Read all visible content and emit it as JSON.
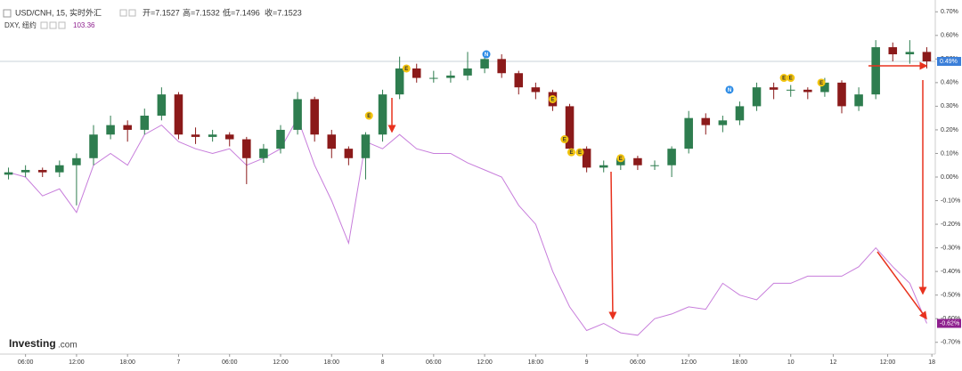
{
  "chart_data": {
    "type": "candlestick",
    "title": "USD/CNH, 15, 实时外汇",
    "header_stats": [
      "开=7.1527",
      "高=7.1532",
      "低=7.1496",
      "收=7.1523"
    ],
    "x": [
      0.5,
      1.5,
      2.5,
      3.5,
      4.5,
      5.5,
      6.5,
      7.5,
      8.5,
      9.5,
      10.5,
      11.5,
      12.5,
      13.5,
      14.5,
      15.5,
      16.5,
      17.5,
      18.5,
      19.5,
      20.5,
      21.5,
      22.5,
      23.5,
      24.5,
      25.5,
      26.5,
      27.5,
      28.5,
      29.5,
      30.5,
      31.5,
      32.5,
      33.5,
      34.5,
      35.5,
      36.5,
      37.5,
      38.5,
      39.5,
      40.5,
      41.5,
      42.5,
      43.5,
      44.5,
      45.5,
      46.5,
      47.5,
      48.5,
      49.5,
      50.5,
      51.5,
      52.5,
      53.5,
      54.5
    ],
    "open": [
      0.01,
      0.02,
      0.03,
      0.02,
      0.05,
      0.08,
      0.18,
      0.22,
      0.2,
      0.26,
      0.35,
      0.18,
      0.17,
      0.18,
      0.16,
      0.08,
      0.12,
      0.2,
      0.33,
      0.18,
      0.12,
      0.08,
      0.18,
      0.35,
      0.46,
      0.42,
      0.42,
      0.43,
      0.46,
      0.5,
      0.44,
      0.38,
      0.36,
      0.3,
      0.12,
      0.04,
      0.05,
      0.08,
      0.05,
      0.05,
      0.12,
      0.25,
      0.22,
      0.24,
      0.3,
      0.38,
      0.37,
      0.37,
      0.36,
      0.4,
      0.3,
      0.35,
      0.55,
      0.52,
      0.53
    ],
    "high": [
      0.04,
      0.05,
      0.04,
      0.07,
      0.1,
      0.22,
      0.26,
      0.24,
      0.29,
      0.38,
      0.36,
      0.21,
      0.2,
      0.19,
      0.17,
      0.14,
      0.22,
      0.36,
      0.34,
      0.2,
      0.13,
      0.19,
      0.37,
      0.51,
      0.48,
      0.45,
      0.45,
      0.53,
      0.53,
      0.52,
      0.45,
      0.4,
      0.37,
      0.31,
      0.13,
      0.07,
      0.09,
      0.09,
      0.07,
      0.13,
      0.28,
      0.27,
      0.26,
      0.32,
      0.4,
      0.4,
      0.39,
      0.38,
      0.42,
      0.41,
      0.38,
      0.58,
      0.57,
      0.58,
      0.55
    ],
    "low": [
      -0.01,
      0.0,
      0.0,
      0.0,
      -0.12,
      0.05,
      0.16,
      0.15,
      0.18,
      0.24,
      0.16,
      0.14,
      0.15,
      0.13,
      -0.03,
      0.06,
      0.1,
      0.18,
      0.15,
      0.08,
      0.05,
      -0.01,
      0.15,
      0.33,
      0.4,
      0.4,
      0.4,
      0.41,
      0.44,
      0.42,
      0.35,
      0.33,
      0.28,
      0.1,
      0.02,
      0.02,
      0.03,
      0.03,
      0.03,
      0.0,
      0.1,
      0.18,
      0.19,
      0.22,
      0.28,
      0.33,
      0.34,
      0.33,
      0.34,
      0.27,
      0.28,
      0.33,
      0.49,
      0.48,
      0.46
    ],
    "close": [
      0.02,
      0.03,
      0.02,
      0.05,
      0.08,
      0.18,
      0.22,
      0.2,
      0.26,
      0.35,
      0.18,
      0.17,
      0.18,
      0.16,
      0.08,
      0.12,
      0.2,
      0.33,
      0.18,
      0.12,
      0.08,
      0.18,
      0.35,
      0.46,
      0.42,
      0.42,
      0.43,
      0.46,
      0.5,
      0.44,
      0.38,
      0.36,
      0.3,
      0.12,
      0.04,
      0.05,
      0.08,
      0.05,
      0.05,
      0.12,
      0.25,
      0.22,
      0.24,
      0.3,
      0.38,
      0.37,
      0.37,
      0.36,
      0.4,
      0.3,
      0.35,
      0.55,
      0.52,
      0.53,
      0.49
    ],
    "up_color": "#2e7d4f",
    "down_color": "#8b1a1a",
    "overlay": {
      "name": "DXY, 纽约",
      "value_label": "103.36",
      "color": "#c77ddb",
      "values": [
        0.02,
        0.0,
        -0.08,
        -0.05,
        -0.15,
        0.05,
        0.1,
        0.05,
        0.18,
        0.22,
        0.15,
        0.12,
        0.1,
        0.12,
        0.05,
        0.08,
        0.12,
        0.25,
        0.05,
        -0.1,
        -0.28,
        0.15,
        0.12,
        0.18,
        0.12,
        0.1,
        0.1,
        0.06,
        0.03,
        0.0,
        -0.12,
        -0.2,
        -0.4,
        -0.55,
        -0.65,
        -0.62,
        -0.66,
        -0.67,
        -0.6,
        -0.58,
        -0.55,
        -0.56,
        -0.45,
        -0.5,
        -0.52,
        -0.45,
        -0.45,
        -0.42,
        -0.42,
        -0.42,
        -0.38,
        -0.3,
        -0.38,
        -0.45,
        -0.62
      ]
    },
    "xlim": [
      0,
      55
    ],
    "xticks": [
      {
        "value": 1.5,
        "label": "06:00"
      },
      {
        "value": 4.5,
        "label": "12:00"
      },
      {
        "value": 7.5,
        "label": "18:00"
      },
      {
        "value": 10.5,
        "label": "7"
      },
      {
        "value": 13.5,
        "label": "06:00"
      },
      {
        "value": 16.5,
        "label": "12:00"
      },
      {
        "value": 19.5,
        "label": "18:00"
      },
      {
        "value": 22.5,
        "label": "8"
      },
      {
        "value": 25.5,
        "label": "06:00"
      },
      {
        "value": 28.5,
        "label": "12:00"
      },
      {
        "value": 31.5,
        "label": "18:00"
      },
      {
        "value": 34.5,
        "label": "9"
      },
      {
        "value": 37.5,
        "label": "06:00"
      },
      {
        "value": 40.5,
        "label": "12:00"
      },
      {
        "value": 43.5,
        "label": "18:00"
      },
      {
        "value": 46.5,
        "label": "10"
      },
      {
        "value": 49,
        "label": "12"
      },
      {
        "value": 52.2,
        "label": "12:00"
      },
      {
        "value": 54.8,
        "label": "18"
      }
    ],
    "ylim": [
      -0.75,
      0.75
    ],
    "yticks": [
      {
        "value": 0.7,
        "label": "0.70%"
      },
      {
        "value": 0.6,
        "label": "0.60%"
      },
      {
        "value": 0.5,
        "label": "0.50%"
      },
      {
        "value": 0.4,
        "label": "0.40%"
      },
      {
        "value": 0.3,
        "label": "0.30%"
      },
      {
        "value": 0.2,
        "label": "0.20%"
      },
      {
        "value": 0.1,
        "label": "0.10%"
      },
      {
        "value": 0,
        "label": "0.00%"
      },
      {
        "value": -0.1,
        "label": "-0.10%"
      },
      {
        "value": -0.2,
        "label": "-0.20%"
      },
      {
        "value": -0.3,
        "label": "-0.30%"
      },
      {
        "value": -0.4,
        "label": "-0.40%"
      },
      {
        "value": -0.5,
        "label": "-0.50%"
      },
      {
        "value": -0.6,
        "label": "-0.60%"
      },
      {
        "value": -0.7,
        "label": "-0.70%"
      }
    ],
    "last_labels": [
      {
        "value": 0.49,
        "label": "0.49%",
        "color": "#3b7fd9"
      },
      {
        "value": -0.62,
        "label": "-0.62%",
        "color": "#8e1f8e"
      }
    ],
    "events": [
      {
        "label": "E",
        "x": 21.7,
        "y": 0.26
      },
      {
        "label": "E",
        "x": 23.9,
        "y": 0.46
      },
      {
        "label": "N",
        "x": 28.6,
        "y": 0.52
      },
      {
        "label": "E",
        "x": 32.5,
        "y": 0.33
      },
      {
        "label": "E",
        "x": 33.2,
        "y": 0.16
      },
      {
        "label": "E",
        "x": 33.6,
        "y": 0.105
      },
      {
        "label": "E",
        "x": 34.1,
        "y": 0.105
      },
      {
        "label": "E",
        "x": 36.5,
        "y": 0.08
      },
      {
        "label": "N",
        "x": 42.9,
        "y": 0.37
      },
      {
        "label": "E",
        "x": 46.1,
        "y": 0.42
      },
      {
        "label": "E",
        "x": 46.5,
        "y": 0.42
      },
      {
        "label": "E",
        "x": 48.3,
        "y": 0.4
      }
    ],
    "watermark": [
      "Investing",
      ".com"
    ]
  }
}
